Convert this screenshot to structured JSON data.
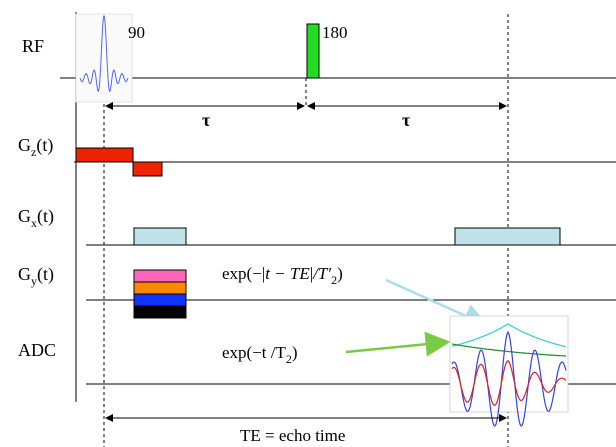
{
  "rows": {
    "rf": "RF",
    "gz": {
      "main": "G",
      "sub": "z",
      "arg": "(t)"
    },
    "gx": {
      "main": "G",
      "sub": "x",
      "arg": "(t)"
    },
    "gy": {
      "main": "G",
      "sub": "y",
      "arg": "(t)"
    },
    "adc": "ADC"
  },
  "pulses": {
    "p90": "90",
    "p180": "180"
  },
  "intervals": {
    "tau1": "τ",
    "tau2": "τ",
    "te": "TE = echo time"
  },
  "equations": {
    "eq1": {
      "a": "exp(−",
      "b": "t − TE",
      "c": "/T′",
      "d": "2",
      "e": ")"
    },
    "eq2": {
      "a": "exp(−t /T",
      "b": "2",
      "c": ")"
    }
  },
  "colors": {
    "gz_lobe": "#ee2200",
    "gx_lobe": "#bfe3e6",
    "gy_steps": [
      "#ff66bb",
      "#ff8800",
      "#1133ff",
      "#000000"
    ],
    "rf_180": "#22dd22",
    "arrow_t2prime": "#aadde6",
    "arrow_t2": "#77cc44",
    "env_cyan": "#33cccc",
    "env_green": "#228822",
    "signal_red": "#dd2222",
    "signal_blue": "#3344dd"
  }
}
